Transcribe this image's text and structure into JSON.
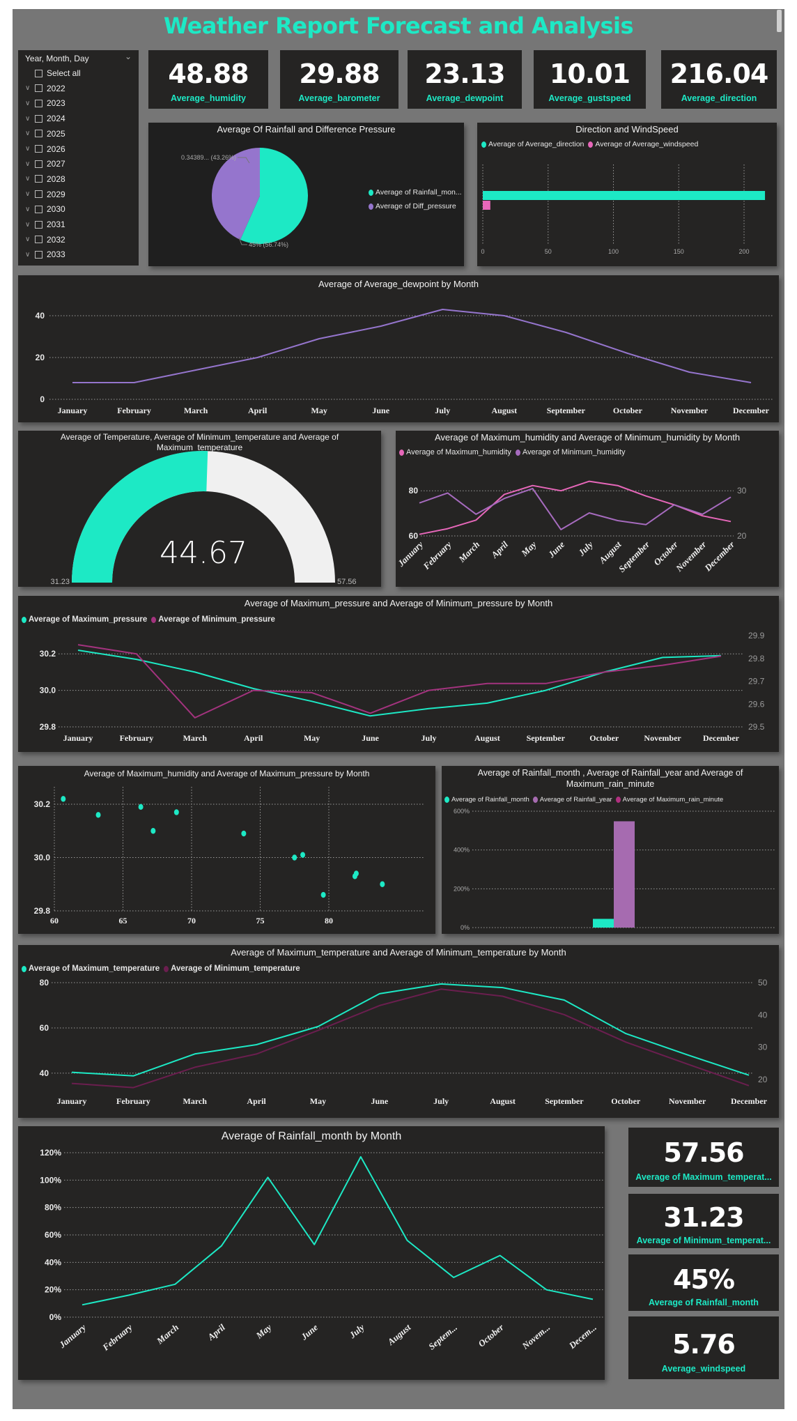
{
  "title": "Weather Report Forecast and Analysis",
  "colors": {
    "accent": "#1DE9C5",
    "canvas": "#767676",
    "panel": "#252423"
  },
  "slicer": {
    "header": "Year, Month, Day",
    "select_all": "Select all",
    "years": [
      "2022",
      "2023",
      "2024",
      "2025",
      "2026",
      "2027",
      "2028",
      "2029",
      "2030",
      "2031",
      "2032",
      "2033"
    ]
  },
  "kpis": [
    {
      "value": "48.88",
      "label": "Average_humidity"
    },
    {
      "value": "29.88",
      "label": "Average_barometer"
    },
    {
      "value": "23.13",
      "label": "Average_dewpoint"
    },
    {
      "value": "10.01",
      "label": "Average_gustspeed"
    },
    {
      "value": "216.04",
      "label": "Average_direction"
    }
  ],
  "side_kpis": [
    {
      "value": "57.56",
      "label": "Average of Maximum_temperat..."
    },
    {
      "value": "31.23",
      "label": "Average of Minimum_temperat..."
    },
    {
      "value": "45%",
      "label": "Average of Rainfall_month"
    },
    {
      "value": "5.76",
      "label": "Average_windspeed"
    }
  ],
  "chart_data": [
    {
      "type": "pie",
      "title": "Average Of Rainfall and Difference Pressure",
      "legend": "right",
      "slices": [
        {
          "name": "Average of Rainfall_mon...",
          "value": 0.45,
          "percent": 56.74,
          "label": "45% (56.74%)",
          "color": "#1DE9C5"
        },
        {
          "name": "Average of Diff_pressure",
          "value": 0.34389,
          "percent": 43.26,
          "label": "0.34389... (43.26%)",
          "color": "#9575CD"
        }
      ]
    },
    {
      "type": "bar",
      "orientation": "horizontal",
      "title": "Direction and WindSpeed",
      "legend": "top-left",
      "xlim": [
        0,
        220
      ],
      "x_ticks": [
        "0",
        "50",
        "100",
        "150",
        "200"
      ],
      "series": [
        {
          "name": "Average of Average_direction",
          "value": 216.04,
          "color": "#1DE9C5"
        },
        {
          "name": "Average of Average_windspeed",
          "value": 5.76,
          "color": "#E667B9"
        }
      ]
    },
    {
      "type": "line",
      "title": "Average of Average_dewpoint by Month",
      "categories": [
        "January",
        "February",
        "March",
        "April",
        "May",
        "June",
        "July",
        "August",
        "September",
        "October",
        "November",
        "December"
      ],
      "y_left": {
        "min": 0,
        "max": 45,
        "ticks": [
          "0",
          "20",
          "40"
        ]
      },
      "grid": true,
      "series": [
        {
          "values": [
            8,
            8,
            14,
            20,
            29,
            35,
            43,
            40,
            32,
            22,
            13,
            8
          ],
          "color": "#9575CD",
          "axis": "left"
        }
      ]
    },
    {
      "type": "gauge",
      "title": "Average of Temperature, Average of Minimum_temperature and Average of Maximum_temperature",
      "value": 44.67,
      "value_label": "44.67",
      "min": 31.23,
      "min_label": "31.23",
      "max": 57.56,
      "max_label": "57.56",
      "colors": {
        "fill": "#1DE9C5",
        "track": "#F0F0F0"
      }
    },
    {
      "type": "line",
      "title": "Average of Maximum_humidity and Average of Minimum_humidity by Month",
      "legend": "top-left",
      "categories": [
        "January",
        "February",
        "March",
        "April",
        "May",
        "June",
        "July",
        "August",
        "September",
        "October",
        "November",
        "December"
      ],
      "y_left": {
        "min": 60,
        "max": 85,
        "ticks": [
          "60",
          "80"
        ]
      },
      "y_right": {
        "min": 20,
        "max": 32.5,
        "ticks": [
          "20",
          "30"
        ]
      },
      "grid": true,
      "series": [
        {
          "name": "Average of Maximum_humidity",
          "values": [
            60.7,
            63.2,
            67.0,
            78.4,
            82.3,
            80.0,
            84.2,
            82.3,
            77.7,
            73.8,
            68.9,
            66.4
          ],
          "color": "#E667B9",
          "axis": "left"
        },
        {
          "name": "Average of Minimum_humidity",
          "values": [
            27.3,
            29.5,
            24.8,
            28.3,
            30.5,
            21.4,
            25.1,
            23.4,
            22.5,
            26.9,
            24.8,
            28.6
          ],
          "color": "#A66BBE",
          "axis": "right"
        }
      ]
    },
    {
      "type": "line",
      "title": "Average of Maximum_pressure and Average of Minimum_pressure by Month",
      "legend": "top-left",
      "categories": [
        "January",
        "February",
        "March",
        "April",
        "May",
        "June",
        "July",
        "August",
        "September",
        "October",
        "November",
        "December"
      ],
      "y_left": {
        "min": 29.8,
        "max": 30.3,
        "ticks": [
          "29.8",
          "30.0",
          "30.2"
        ]
      },
      "y_right": {
        "min": 29.5,
        "max": 29.9,
        "ticks": [
          "29.5",
          "29.6",
          "29.7",
          "29.8",
          "29.9"
        ]
      },
      "grid": true,
      "series": [
        {
          "name": "Average of Maximum_pressure",
          "values": [
            30.22,
            30.17,
            30.1,
            30.01,
            29.94,
            29.86,
            29.9,
            29.93,
            30.0,
            30.1,
            30.18,
            30.19
          ],
          "color": "#1DE9C5",
          "axis": "left"
        },
        {
          "name": "Average of Minimum_pressure",
          "values": [
            29.86,
            29.82,
            29.54,
            29.66,
            29.65,
            29.56,
            29.66,
            29.69,
            29.69,
            29.74,
            29.77,
            29.81
          ],
          "color": "#A3337E",
          "axis": "right"
        }
      ]
    },
    {
      "type": "scatter",
      "title": "Average of Maximum_humidity and Average of Maximum_pressure by Month",
      "xlim": [
        60,
        84
      ],
      "ylim": [
        29.8,
        30.28
      ],
      "x_ticks": [
        "60",
        "65",
        "70",
        "75",
        "80"
      ],
      "y_ticks": [
        "29.8",
        "30.0",
        "30.2"
      ],
      "grid": true,
      "color": "#1DE9C5",
      "points": [
        [
          60.65,
          30.22
        ],
        [
          63.2,
          30.16
        ],
        [
          66.3,
          30.19
        ],
        [
          67.2,
          30.1
        ],
        [
          68.9,
          30.17
        ],
        [
          73.8,
          30.09
        ],
        [
          77.5,
          30.0
        ],
        [
          78.1,
          30.01
        ],
        [
          79.6,
          29.86
        ],
        [
          81.9,
          29.93
        ],
        [
          82.0,
          29.94
        ],
        [
          83.9,
          29.9
        ]
      ]
    },
    {
      "type": "bar",
      "title": "Average of Rainfall_month , Average of Rainfall_year and Average of Maximum_rain_minute",
      "legend": "top-left",
      "ylim": [
        0,
        600
      ],
      "y_ticks": [
        "0%",
        "200%",
        "400%",
        "600%"
      ],
      "grid": true,
      "series": [
        {
          "name": "Average of Rainfall_month",
          "value": 45,
          "color": "#1DE9C5"
        },
        {
          "name": "Average of Rainfall_year",
          "value": 548,
          "color": "#A66BB0"
        },
        {
          "name": "Average of Maximum_rain_minute",
          "value": 0,
          "color": "#B0307F"
        }
      ]
    },
    {
      "type": "line",
      "title": "Average of Maximum_temperature and Average of Minimum_temperature by Month",
      "legend": "top-left",
      "categories": [
        "January",
        "February",
        "March",
        "April",
        "May",
        "June",
        "July",
        "August",
        "September",
        "October",
        "November",
        "December"
      ],
      "y_left": {
        "min": 33.2,
        "max": 80,
        "ticks": [
          "40",
          "60",
          "80"
        ]
      },
      "y_right": {
        "min": 17.2,
        "max": 50,
        "ticks": [
          "20",
          "30",
          "40",
          "50"
        ]
      },
      "grid": true,
      "series": [
        {
          "name": "Average of Maximum_temperature",
          "values": [
            40.4,
            38.8,
            48.5,
            52.6,
            60.6,
            75.1,
            79.4,
            77.8,
            72.3,
            57.5,
            48.1,
            39.1
          ],
          "color": "#1DE9C5",
          "axis": "left"
        },
        {
          "name": "Average of Minimum_temperature",
          "values": [
            18.8,
            17.5,
            23.8,
            27.9,
            35.2,
            42.9,
            48.0,
            45.8,
            40.1,
            31.6,
            24.8,
            18.1
          ],
          "color": "#6B1E4F",
          "axis": "right"
        }
      ]
    },
    {
      "type": "line",
      "title": "Average of Rainfall_month by Month",
      "categories": [
        "January",
        "February",
        "March",
        "April",
        "May",
        "June",
        "July",
        "August",
        "Septem...",
        "October",
        "Novem...",
        "Decem..."
      ],
      "y_left": {
        "min": 0,
        "max": 120,
        "ticks": [
          "0%",
          "20%",
          "40%",
          "60%",
          "80%",
          "100%",
          "120%"
        ]
      },
      "grid": true,
      "series": [
        {
          "values": [
            9,
            16,
            24,
            52,
            102,
            53,
            117,
            56,
            29,
            45,
            20,
            13
          ],
          "color": "#1DE9C5",
          "axis": "left"
        }
      ]
    }
  ]
}
